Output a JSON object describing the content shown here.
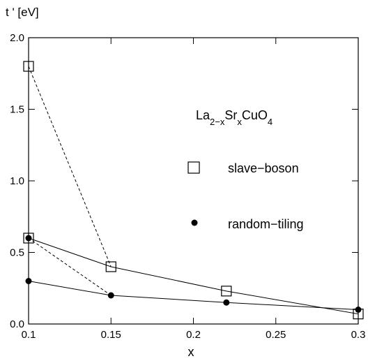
{
  "chart_data": {
    "type": "scatter",
    "ylabel": "t ' [eV]",
    "xlabel": "x",
    "xlim": [
      0.1,
      0.3
    ],
    "ylim": [
      0.0,
      2.0
    ],
    "x_ticks": [
      "0.1",
      "0.15",
      "0.2",
      "0.25",
      "0.3"
    ],
    "y_ticks": [
      "0.0",
      "0.5",
      "1.0",
      "1.5",
      "2.0"
    ],
    "grid": false,
    "legend_placement": "right",
    "annotation": {
      "parts": [
        {
          "text": "La",
          "shift": "base"
        },
        {
          "text": "2−x",
          "shift": "sub"
        },
        {
          "text": "Sr",
          "shift": "base"
        },
        {
          "text": "x",
          "shift": "sub"
        },
        {
          "text": "CuO",
          "shift": "base"
        },
        {
          "text": "4",
          "shift": "sub"
        }
      ]
    },
    "series": [
      {
        "name": "slave−boson",
        "marker": "open-square",
        "points": [
          {
            "x": 0.1,
            "y": 1.8
          },
          {
            "x": 0.1,
            "y": 0.6
          },
          {
            "x": 0.15,
            "y": 0.4
          },
          {
            "x": 0.22,
            "y": 0.23
          },
          {
            "x": 0.3,
            "y": 0.07
          }
        ]
      },
      {
        "name": "random−tiling",
        "marker": "filled-circle",
        "points": [
          {
            "x": 0.1,
            "y": 0.6
          },
          {
            "x": 0.1,
            "y": 0.3
          },
          {
            "x": 0.15,
            "y": 0.2
          },
          {
            "x": 0.22,
            "y": 0.15
          },
          {
            "x": 0.3,
            "y": 0.1
          }
        ]
      }
    ],
    "lines": [
      {
        "style": "solid",
        "points": [
          {
            "x": 0.1,
            "y": 0.6
          },
          {
            "x": 0.15,
            "y": 0.4
          },
          {
            "x": 0.22,
            "y": 0.23
          },
          {
            "x": 0.3,
            "y": 0.07
          }
        ]
      },
      {
        "style": "solid",
        "points": [
          {
            "x": 0.1,
            "y": 0.3
          },
          {
            "x": 0.15,
            "y": 0.2
          },
          {
            "x": 0.22,
            "y": 0.15
          },
          {
            "x": 0.3,
            "y": 0.1
          }
        ]
      },
      {
        "style": "dashed",
        "points": [
          {
            "x": 0.1,
            "y": 1.8
          },
          {
            "x": 0.15,
            "y": 0.4
          }
        ]
      },
      {
        "style": "dashed",
        "points": [
          {
            "x": 0.1,
            "y": 0.6
          },
          {
            "x": 0.15,
            "y": 0.2
          }
        ]
      }
    ]
  }
}
